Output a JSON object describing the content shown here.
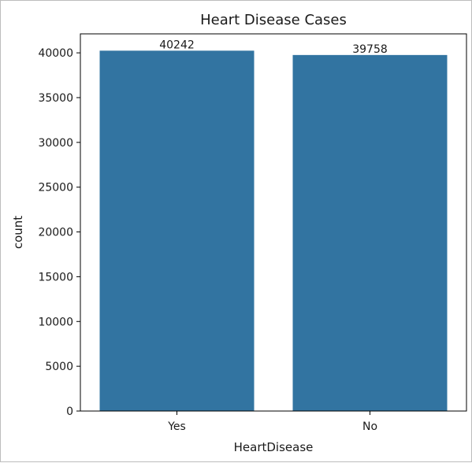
{
  "chart_data": {
    "type": "bar",
    "title": "Heart Disease Cases",
    "xlabel": "HeartDisease",
    "ylabel": "count",
    "categories": [
      "Yes",
      "No"
    ],
    "values": [
      40242,
      39758
    ],
    "data_labels": [
      "40242",
      "39758"
    ],
    "ylim": [
      0,
      42120
    ],
    "yticks": [
      0,
      5000,
      10000,
      15000,
      20000,
      25000,
      30000,
      35000,
      40000
    ],
    "ytick_labels": [
      "0",
      "5000",
      "10000",
      "15000",
      "20000",
      "25000",
      "30000",
      "35000",
      "40000"
    ],
    "bar_color": "#3274a1",
    "grid": false,
    "legend": "none"
  }
}
